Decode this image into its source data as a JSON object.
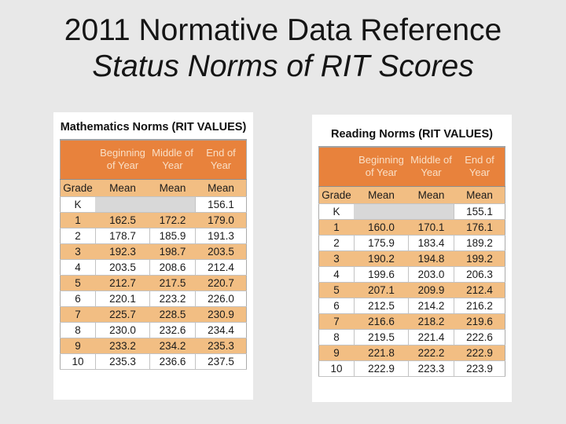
{
  "slide": {
    "title_line1": "2011 Normative Data Reference",
    "title_line2": "Status Norms of RIT Scores"
  },
  "colors": {
    "page_bg": "#E8E8E8",
    "card_bg": "#FFFFFF",
    "header_orange": "#E8823C",
    "header_text": "#F9DFC6",
    "row_orange": "#F2BE83",
    "na_gray": "#D8D8D8",
    "grid_line": "#C3C3C3",
    "title_text": "#151515"
  },
  "chart_data": [
    {
      "type": "table",
      "title": "Mathematics Norms (RIT VALUES)",
      "columns": [
        "",
        "Beginning\nof Year",
        "Middle of\nYear",
        "End of\nYear"
      ],
      "sub_headers": [
        "Grade",
        "Mean",
        "Mean",
        "Mean"
      ],
      "rows": [
        [
          "K",
          "",
          "",
          "156.1"
        ],
        [
          "1",
          "162.5",
          "172.2",
          "179.0"
        ],
        [
          "2",
          "178.7",
          "185.9",
          "191.3"
        ],
        [
          "3",
          "192.3",
          "198.7",
          "203.5"
        ],
        [
          "4",
          "203.5",
          "208.6",
          "212.4"
        ],
        [
          "5",
          "212.7",
          "217.5",
          "220.7"
        ],
        [
          "6",
          "220.1",
          "223.2",
          "226.0"
        ],
        [
          "7",
          "225.7",
          "228.5",
          "230.9"
        ],
        [
          "8",
          "230.0",
          "232.6",
          "234.4"
        ],
        [
          "9",
          "233.2",
          "234.2",
          "235.3"
        ],
        [
          "10",
          "235.3",
          "236.6",
          "237.5"
        ]
      ]
    },
    {
      "type": "table",
      "title": "Reading Norms (RIT VALUES)",
      "columns": [
        "",
        "Beginning\nof Year",
        "Middle of\nYear",
        "End of\nYear"
      ],
      "sub_headers": [
        "Grade",
        "Mean",
        "Mean",
        "Mean"
      ],
      "rows": [
        [
          "K",
          "",
          "",
          "155.1"
        ],
        [
          "1",
          "160.0",
          "170.1",
          "176.1"
        ],
        [
          "2",
          "175.9",
          "183.4",
          "189.2"
        ],
        [
          "3",
          "190.2",
          "194.8",
          "199.2"
        ],
        [
          "4",
          "199.6",
          "203.0",
          "206.3"
        ],
        [
          "5",
          "207.1",
          "209.9",
          "212.4"
        ],
        [
          "6",
          "212.5",
          "214.2",
          "216.2"
        ],
        [
          "7",
          "216.6",
          "218.2",
          "219.6"
        ],
        [
          "8",
          "219.5",
          "221.4",
          "222.6"
        ],
        [
          "9",
          "221.8",
          "222.2",
          "222.9"
        ],
        [
          "10",
          "222.9",
          "223.3",
          "223.9"
        ]
      ]
    }
  ]
}
